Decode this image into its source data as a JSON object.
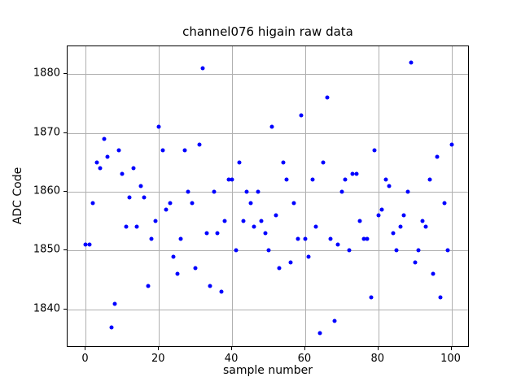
{
  "title": "channel076 higain raw data",
  "chart_data": {
    "type": "scatter",
    "title": "channel076 higain raw data",
    "xlabel": "sample number",
    "ylabel": "ADC Code",
    "xlim": [
      -5,
      105
    ],
    "ylim": [
      1833.5,
      1884.7
    ],
    "xticks": [
      0,
      20,
      40,
      60,
      80,
      100
    ],
    "yticks": [
      1840,
      1850,
      1860,
      1870,
      1880
    ],
    "grid": true,
    "legend": "none",
    "marker_color": "#0000ff",
    "grid_color": "#b0b0b0",
    "spine_color": "#000000",
    "x": [
      0,
      1,
      2,
      3,
      4,
      5,
      6,
      7,
      8,
      9,
      10,
      11,
      12,
      13,
      14,
      15,
      16,
      17,
      18,
      19,
      20,
      21,
      22,
      23,
      24,
      25,
      26,
      27,
      28,
      29,
      30,
      31,
      32,
      33,
      34,
      35,
      36,
      37,
      38,
      39,
      40,
      41,
      42,
      43,
      44,
      45,
      46,
      47,
      48,
      49,
      50,
      51,
      52,
      53,
      54,
      55,
      56,
      57,
      58,
      59,
      60,
      61,
      62,
      63,
      64,
      65,
      66,
      67,
      68,
      69,
      70,
      71,
      72,
      73,
      74,
      75,
      76,
      77,
      78,
      79,
      80,
      81,
      82,
      83,
      84,
      85,
      86,
      87,
      88,
      89,
      90,
      91,
      92,
      93,
      94,
      95,
      96,
      97,
      98,
      99,
      100
    ],
    "y": [
      1851,
      1851,
      1858,
      1865,
      1864,
      1869,
      1866,
      1837,
      1841,
      1867,
      1863,
      1854,
      1859,
      1864,
      1854,
      1861,
      1859,
      1844,
      1852,
      1855,
      1871,
      1867,
      1857,
      1858,
      1849,
      1846,
      1852,
      1867,
      1860,
      1858,
      1847,
      1868,
      1881,
      1853,
      1844,
      1860,
      1853,
      1843,
      1855,
      1862,
      1862,
      1850,
      1865,
      1855,
      1860,
      1858,
      1854,
      1860,
      1855,
      1853,
      1850,
      1871,
      1856,
      1847,
      1865,
      1862,
      1848,
      1858,
      1852,
      1873,
      1852,
      1849,
      1862,
      1854,
      1836,
      1865,
      1876,
      1852,
      1838,
      1851,
      1860,
      1862,
      1850,
      1863,
      1863,
      1855,
      1852,
      1852,
      1842,
      1867,
      1856,
      1857,
      1862,
      1861,
      1853,
      1850,
      1854,
      1856,
      1860,
      1882,
      1848,
      1850,
      1855,
      1854,
      1862,
      1846,
      1866,
      1842,
      1858,
      1850,
      1868
    ]
  }
}
